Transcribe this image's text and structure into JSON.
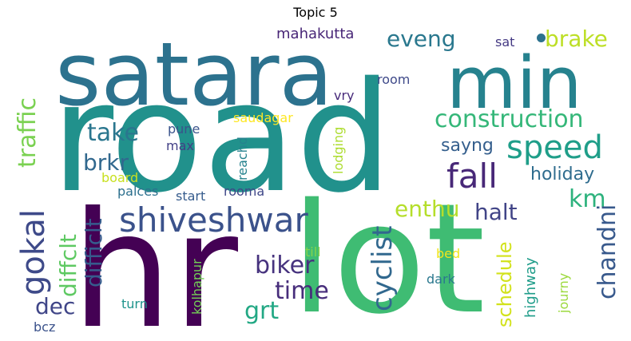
{
  "title": "Topic 5",
  "words": [
    {
      "text": "road",
      "color": "#21918c"
    },
    {
      "text": "hr",
      "color": "#440154"
    },
    {
      "text": "lot",
      "color": "#3fbc73"
    },
    {
      "text": "satara",
      "color": "#2c728e"
    },
    {
      "text": "min",
      "color": "#26828e"
    },
    {
      "text": "shiveshwar",
      "color": "#3b528b"
    },
    {
      "text": "speed",
      "color": "#1f9e89"
    },
    {
      "text": "fall",
      "color": "#482878"
    },
    {
      "text": "construction",
      "color": "#35b779"
    },
    {
      "text": "eveng",
      "color": "#2a788e"
    },
    {
      "text": "brake",
      "color": "#bddf26"
    },
    {
      "text": "gokal",
      "color": "#3e4a89"
    },
    {
      "text": "traffic",
      "color": "#7ad151"
    },
    {
      "text": "take",
      "color": "#2a768e"
    },
    {
      "text": "brkr",
      "color": "#31688e"
    },
    {
      "text": "biker",
      "color": "#46327e"
    },
    {
      "text": "time",
      "color": "#472d7b"
    },
    {
      "text": "grt",
      "color": "#22a884"
    },
    {
      "text": "cyclist",
      "color": "#31688e"
    },
    {
      "text": "enthu",
      "color": "#b5de2b"
    },
    {
      "text": "halt",
      "color": "#414487"
    },
    {
      "text": "km",
      "color": "#2db27d"
    },
    {
      "text": "holiday",
      "color": "#2f6c8e"
    },
    {
      "text": "sayng",
      "color": "#355f8d"
    },
    {
      "text": "chandni",
      "color": "#38598c"
    },
    {
      "text": "schedule",
      "color": "#d2e21b"
    },
    {
      "text": "highway",
      "color": "#1e9c89"
    },
    {
      "text": "journy",
      "color": "#9bd93c"
    },
    {
      "text": "diffclt",
      "color": "#5ec962"
    },
    {
      "text": "difficlt",
      "color": "#365c8d"
    },
    {
      "text": "dec",
      "color": "#404688"
    },
    {
      "text": "bcz",
      "color": "#3b528b"
    },
    {
      "text": "mahakutta",
      "color": "#482677"
    },
    {
      "text": "sat",
      "color": "#443983"
    },
    {
      "text": "room",
      "color": "#3e4989"
    },
    {
      "text": "vry",
      "color": "#472a7a"
    },
    {
      "text": "saudagar",
      "color": "#fde725"
    },
    {
      "text": "pune",
      "color": "#3a538b"
    },
    {
      "text": "max",
      "color": "#424086"
    },
    {
      "text": "reachd",
      "color": "#26828e"
    },
    {
      "text": "lodging",
      "color": "#addc30"
    },
    {
      "text": "board",
      "color": "#c8e020"
    },
    {
      "text": "palces",
      "color": "#2d708e"
    },
    {
      "text": "start",
      "color": "#365c8d"
    },
    {
      "text": "rooma",
      "color": "#3f4788"
    },
    {
      "text": "till",
      "color": "#84d44b"
    },
    {
      "text": "bed",
      "color": "#f1e51d"
    },
    {
      "text": "dark",
      "color": "#2a788e"
    },
    {
      "text": "turn",
      "color": "#1f948c"
    },
    {
      "text": "kolhapur",
      "color": "#73d056"
    }
  ]
}
